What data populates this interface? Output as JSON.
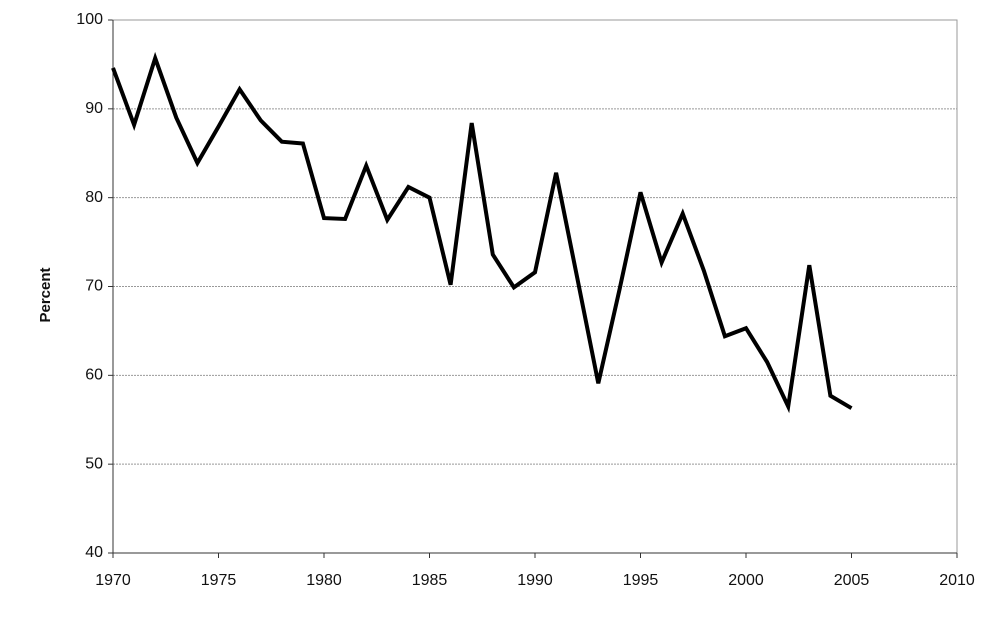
{
  "chart_data": {
    "type": "line",
    "y_label": "Percent",
    "x": [
      1970,
      1971,
      1972,
      1973,
      1974,
      1975,
      1976,
      1977,
      1978,
      1979,
      1980,
      1981,
      1982,
      1983,
      1984,
      1985,
      1986,
      1987,
      1988,
      1989,
      1990,
      1991,
      1992,
      1993,
      1994,
      1995,
      1996,
      1997,
      1998,
      1999,
      2000,
      2001,
      2002,
      2003,
      2004,
      2005
    ],
    "series": [
      {
        "color": "#000000",
        "values": [
          94.6,
          88.2,
          95.7,
          89,
          83.9,
          88,
          92.2,
          88.7,
          86.3,
          86.1,
          77.7,
          77.6,
          83.6,
          77.5,
          81.2,
          80,
          70.2,
          88.4,
          73.6,
          69.9,
          71.6,
          82.8,
          71,
          59.1,
          69.6,
          80.6,
          72.7,
          78.2,
          71.8,
          64.4,
          65.3,
          61.5,
          56.5,
          72.4,
          57.7,
          56.3
        ]
      }
    ],
    "xlim": [
      1970,
      2010
    ],
    "xticks": [
      1970,
      1975,
      1980,
      1985,
      1990,
      1995,
      2000,
      2005,
      2010
    ],
    "ylim": [
      40,
      100
    ],
    "yticks": [
      40,
      50,
      60,
      70,
      80,
      90,
      100
    ],
    "grid": true
  }
}
